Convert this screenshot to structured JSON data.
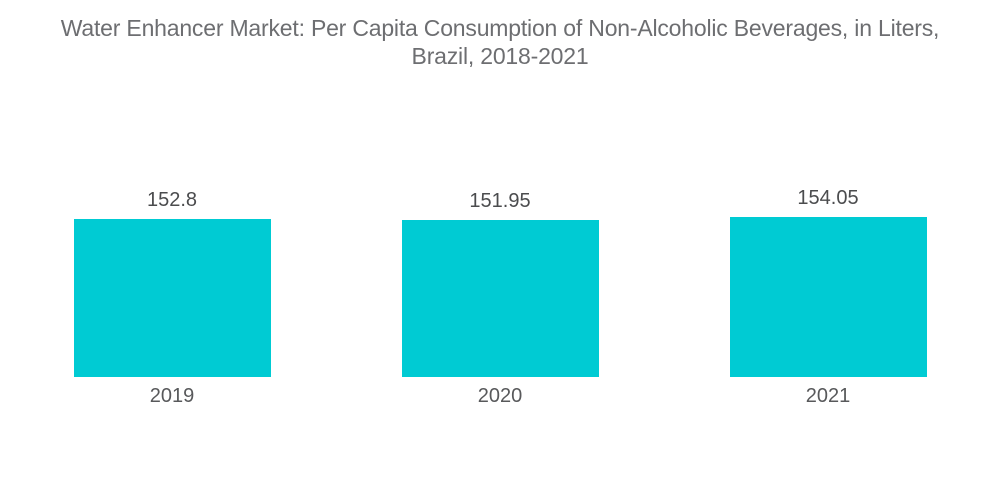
{
  "title": {
    "line1": "Water Enhancer Market: Per Capita Consumption of Non-Alcoholic Beverages, in Liters,",
    "line2": "Brazil, 2018-2021"
  },
  "chart_data": {
    "type": "bar",
    "title": "Water Enhancer Market: Per Capita Consumption of Non-Alcoholic Beverages, in Liters, Brazil, 2018-2021",
    "categories": [
      "2019",
      "2020",
      "2021"
    ],
    "values": [
      152.8,
      151.95,
      154.05
    ],
    "value_labels": [
      "152.8",
      "151.95",
      "154.05"
    ],
    "xlabel": "",
    "ylabel": "",
    "unit": "Liters",
    "grid": false,
    "legend": false,
    "axes_visible": false,
    "label_position": "above-bars",
    "bar_color": "#00cbd3"
  },
  "colors": {
    "background": "#ffffff",
    "bar": "#00cbd3",
    "title_text": "#6d6e71",
    "value_label_text": "#4b4c4e",
    "category_label_text": "#58595b"
  }
}
